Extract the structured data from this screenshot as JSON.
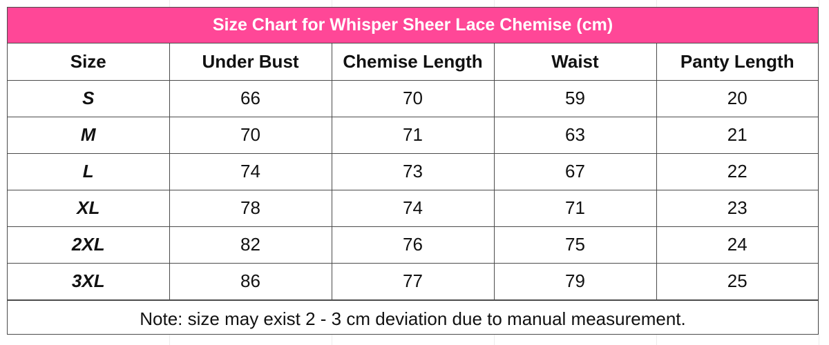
{
  "title": "Size Chart for Whisper Sheer Lace Chemise (cm)",
  "colors": {
    "title_background": "#ff4797",
    "title_text": "#ffffff",
    "border": "#4a4a4a"
  },
  "columns": [
    "Size",
    "Under Bust",
    "Chemise Length",
    "Waist",
    "Panty Length"
  ],
  "rows": [
    [
      "S",
      "66",
      "70",
      "59",
      "20"
    ],
    [
      "M",
      "70",
      "71",
      "63",
      "21"
    ],
    [
      "L",
      "74",
      "73",
      "67",
      "22"
    ],
    [
      "XL",
      "78",
      "74",
      "71",
      "23"
    ],
    [
      "2XL",
      "82",
      "76",
      "75",
      "24"
    ],
    [
      "3XL",
      "86",
      "77",
      "79",
      "25"
    ]
  ],
  "note": "Note: size may exist 2 - 3 cm deviation due to manual measurement.",
  "chart_data": {
    "type": "table",
    "title": "Size Chart for Whisper Sheer Lace Chemise (cm)",
    "columns": [
      "Size",
      "Under Bust",
      "Chemise Length",
      "Waist",
      "Panty Length"
    ],
    "rows": [
      [
        "S",
        66,
        70,
        59,
        20
      ],
      [
        "M",
        70,
        71,
        63,
        21
      ],
      [
        "L",
        74,
        73,
        67,
        22
      ],
      [
        "XL",
        78,
        74,
        71,
        23
      ],
      [
        "2XL",
        82,
        76,
        75,
        24
      ],
      [
        "3XL",
        86,
        77,
        79,
        25
      ]
    ]
  }
}
